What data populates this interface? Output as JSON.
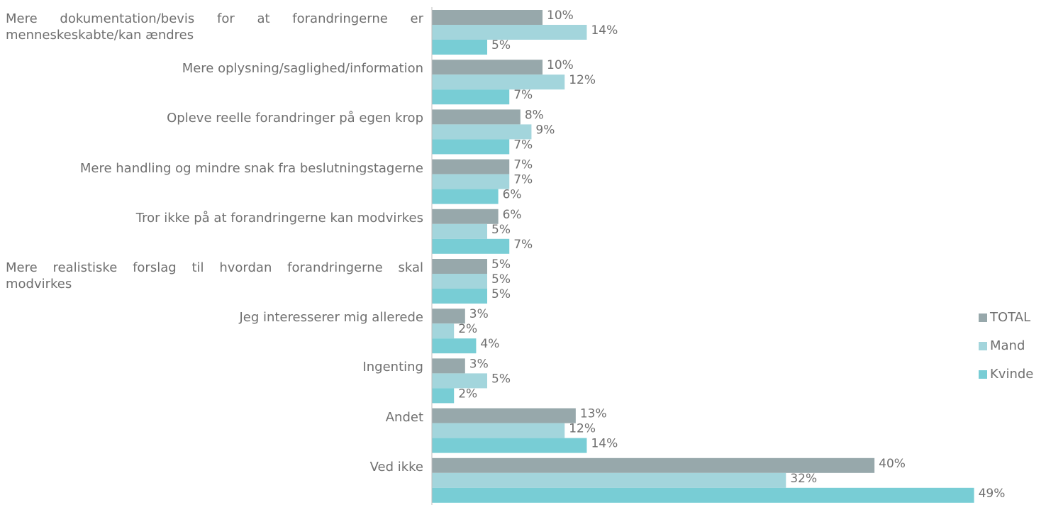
{
  "chart_data": {
    "type": "bar",
    "orientation": "horizontal",
    "categories": [
      "Mere dokumentation/bevis for at forandringerne er menneskeskabte/kan ændres",
      "Mere oplysning/saglighed/information",
      "Opleve reelle forandringer på egen krop",
      "Mere handling og mindre snak fra beslutningstagerne",
      "Tror ikke på at forandringerne kan modvirkes",
      "Mere realistiske forslag til hvordan forandringerne skal modvirkes",
      "Jeg interesserer mig allerede",
      "Ingenting",
      "Andet",
      "Ved ikke"
    ],
    "series": [
      {
        "name": "TOTAL",
        "color": "#97a8ab",
        "values": [
          10,
          10,
          8,
          7,
          6,
          5,
          3,
          3,
          13,
          40
        ],
        "value_labels": [
          "10%",
          "10%",
          "8%",
          "7%",
          "6%",
          "5%",
          "3%",
          "3%",
          "13%",
          "40%"
        ]
      },
      {
        "name": "Mand",
        "color": "#a3d5dc",
        "values": [
          14,
          12,
          9,
          7,
          5,
          5,
          2,
          5,
          12,
          32
        ],
        "value_labels": [
          "14%",
          "12%",
          "9%",
          "7%",
          "5%",
          "5%",
          "2%",
          "5%",
          "12%",
          "32%"
        ]
      },
      {
        "name": "Kvinde",
        "color": "#78cdd5",
        "values": [
          5,
          7,
          7,
          6,
          7,
          5,
          4,
          2,
          14,
          49
        ],
        "value_labels": [
          "5%",
          "7%",
          "7%",
          "6%",
          "7%",
          "5%",
          "4%",
          "2%",
          "14%",
          "49%"
        ]
      }
    ],
    "xlim": [
      0,
      55.5
    ],
    "legend": "right"
  }
}
